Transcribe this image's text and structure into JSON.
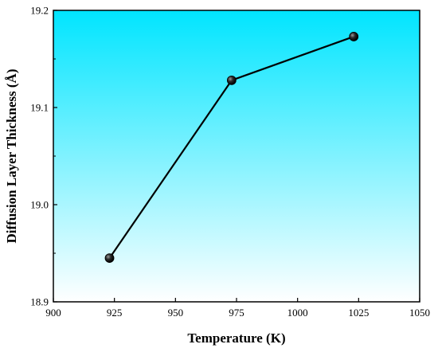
{
  "chart_data": {
    "type": "line",
    "xlabel": "Temperature (K)",
    "ylabel": "Diffusion Layer Thickness (Å)",
    "xlim": [
      900,
      1050
    ],
    "ylim": [
      18.9,
      19.2
    ],
    "xticks": [
      900,
      925,
      950,
      975,
      1000,
      1025,
      1050
    ],
    "yticks": [
      18.9,
      19.0,
      19.1,
      19.2
    ],
    "xtick_labels": [
      "900",
      "925",
      "950",
      "975",
      "1000",
      "1025",
      "1050"
    ],
    "ytick_labels": [
      "18.9",
      "19.0",
      "19.1",
      "19.2"
    ],
    "series": [
      {
        "x": [
          923,
          973,
          1023
        ],
        "y": [
          18.945,
          19.128,
          19.173
        ]
      }
    ],
    "grid": false,
    "legend": "none",
    "background_gradient": [
      "#00e5ff",
      "#ffffff"
    ],
    "line_color": "#000000",
    "marker_color": "#000000"
  }
}
